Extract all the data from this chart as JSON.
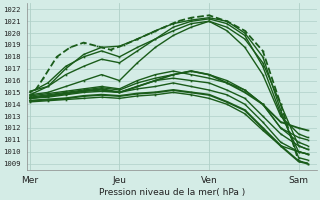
{
  "bg_color": "#d4ece6",
  "grid_color": "#b0d0c8",
  "line_color_dark": "#1a5c1a",
  "line_color_med": "#2a7a2a",
  "title": "Pression niveau de la mer( hPa )",
  "ylabel_vals": [
    1009,
    1010,
    1011,
    1012,
    1013,
    1014,
    1015,
    1016,
    1017,
    1018,
    1019,
    1020,
    1021,
    1022
  ],
  "ylim": [
    1008.5,
    1022.5
  ],
  "xlim": [
    -0.03,
    3.2
  ],
  "x_ticks": [
    0,
    1,
    2,
    3
  ],
  "x_labels": [
    "Mer",
    "Jeu",
    "Ven",
    "Sam"
  ],
  "ensemble_lines": [
    {
      "points": [
        [
          0,
          1014.5
        ],
        [
          0.15,
          1016.2
        ],
        [
          0.3,
          1018.0
        ],
        [
          0.45,
          1018.8
        ],
        [
          0.6,
          1019.2
        ],
        [
          0.75,
          1018.9
        ],
        [
          0.9,
          1018.6
        ],
        [
          1.05,
          1019.0
        ],
        [
          1.2,
          1019.5
        ],
        [
          1.35,
          1020.0
        ],
        [
          1.5,
          1020.5
        ],
        [
          1.65,
          1021.0
        ],
        [
          1.8,
          1021.3
        ],
        [
          2.0,
          1021.5
        ],
        [
          2.2,
          1021.0
        ],
        [
          2.4,
          1020.2
        ],
        [
          2.6,
          1018.5
        ],
        [
          2.8,
          1014.0
        ],
        [
          3.0,
          1009.2
        ],
        [
          3.1,
          1009.0
        ]
      ],
      "lw": 1.3,
      "dashed": true,
      "color": "#1a5c1a"
    },
    {
      "points": [
        [
          0,
          1014.8
        ],
        [
          0.2,
          1015.5
        ],
        [
          0.4,
          1017.0
        ],
        [
          0.6,
          1018.2
        ],
        [
          0.8,
          1018.8
        ],
        [
          1.0,
          1018.9
        ],
        [
          1.2,
          1019.5
        ],
        [
          1.4,
          1020.2
        ],
        [
          1.6,
          1020.8
        ],
        [
          1.8,
          1021.1
        ],
        [
          2.0,
          1021.3
        ],
        [
          2.2,
          1021.0
        ],
        [
          2.4,
          1020.0
        ],
        [
          2.6,
          1018.0
        ],
        [
          2.8,
          1013.5
        ],
        [
          3.0,
          1009.5
        ],
        [
          3.1,
          1009.3
        ]
      ],
      "lw": 1.0,
      "dashed": false,
      "color": "#1a5c1a"
    },
    {
      "points": [
        [
          0,
          1015.0
        ],
        [
          0.2,
          1015.8
        ],
        [
          0.4,
          1017.2
        ],
        [
          0.6,
          1018.0
        ],
        [
          0.8,
          1018.5
        ],
        [
          1.0,
          1018.0
        ],
        [
          1.2,
          1018.8
        ],
        [
          1.4,
          1019.5
        ],
        [
          1.6,
          1020.2
        ],
        [
          1.8,
          1020.8
        ],
        [
          2.0,
          1021.0
        ],
        [
          2.2,
          1020.5
        ],
        [
          2.4,
          1019.5
        ],
        [
          2.6,
          1017.5
        ],
        [
          2.8,
          1014.0
        ],
        [
          3.0,
          1010.5
        ],
        [
          3.1,
          1010.2
        ]
      ],
      "lw": 1.0,
      "dashed": false,
      "color": "#1a5c1a"
    },
    {
      "points": [
        [
          0,
          1015.1
        ],
        [
          0.2,
          1015.5
        ],
        [
          0.4,
          1016.5
        ],
        [
          0.6,
          1017.2
        ],
        [
          0.8,
          1017.8
        ],
        [
          1.0,
          1017.5
        ],
        [
          1.2,
          1018.5
        ],
        [
          1.4,
          1019.5
        ],
        [
          1.6,
          1020.5
        ],
        [
          1.8,
          1021.0
        ],
        [
          2.0,
          1021.2
        ],
        [
          2.2,
          1020.8
        ],
        [
          2.4,
          1019.8
        ],
        [
          2.6,
          1017.2
        ],
        [
          2.8,
          1013.2
        ],
        [
          3.0,
          1010.0
        ],
        [
          3.1,
          1009.8
        ]
      ],
      "lw": 1.0,
      "dashed": false,
      "color": "#1a5c1a"
    },
    {
      "points": [
        [
          0,
          1014.8
        ],
        [
          0.2,
          1015.0
        ],
        [
          0.4,
          1015.5
        ],
        [
          0.6,
          1016.0
        ],
        [
          0.8,
          1016.5
        ],
        [
          1.0,
          1016.0
        ],
        [
          1.2,
          1017.5
        ],
        [
          1.4,
          1018.8
        ],
        [
          1.6,
          1019.8
        ],
        [
          1.8,
          1020.5
        ],
        [
          2.0,
          1021.0
        ],
        [
          2.2,
          1020.2
        ],
        [
          2.4,
          1018.8
        ],
        [
          2.6,
          1016.5
        ],
        [
          2.8,
          1013.0
        ],
        [
          3.0,
          1011.5
        ],
        [
          3.1,
          1011.2
        ]
      ],
      "lw": 1.0,
      "dashed": false,
      "color": "#1a5c1a"
    },
    {
      "points": [
        [
          0,
          1014.7
        ],
        [
          0.2,
          1014.9
        ],
        [
          0.4,
          1015.1
        ],
        [
          0.6,
          1015.3
        ],
        [
          0.8,
          1015.5
        ],
        [
          1.0,
          1015.3
        ],
        [
          1.2,
          1016.0
        ],
        [
          1.4,
          1016.5
        ],
        [
          1.6,
          1016.8
        ],
        [
          1.8,
          1016.5
        ],
        [
          2.0,
          1016.2
        ],
        [
          2.2,
          1015.8
        ],
        [
          2.4,
          1015.2
        ],
        [
          2.6,
          1014.0
        ],
        [
          2.8,
          1012.0
        ],
        [
          3.0,
          1010.8
        ],
        [
          3.1,
          1010.5
        ]
      ],
      "lw": 1.0,
      "dashed": false,
      "color": "#1a5c1a"
    },
    {
      "points": [
        [
          0,
          1014.6
        ],
        [
          0.2,
          1014.8
        ],
        [
          0.4,
          1015.0
        ],
        [
          0.6,
          1015.2
        ],
        [
          0.8,
          1015.4
        ],
        [
          1.0,
          1015.2
        ],
        [
          1.2,
          1015.8
        ],
        [
          1.4,
          1016.2
        ],
        [
          1.6,
          1016.5
        ],
        [
          1.8,
          1016.8
        ],
        [
          2.0,
          1016.5
        ],
        [
          2.2,
          1016.0
        ],
        [
          2.4,
          1015.2
        ],
        [
          2.6,
          1014.0
        ],
        [
          2.8,
          1012.0
        ],
        [
          3.0,
          1011.2
        ],
        [
          3.1,
          1011.0
        ]
      ],
      "lw": 1.0,
      "dashed": false,
      "color": "#1a5c1a"
    },
    {
      "points": [
        [
          0,
          1014.5
        ],
        [
          0.2,
          1014.7
        ],
        [
          0.4,
          1014.9
        ],
        [
          0.6,
          1015.1
        ],
        [
          0.8,
          1015.3
        ],
        [
          1.0,
          1015.0
        ],
        [
          1.2,
          1015.5
        ],
        [
          1.4,
          1016.0
        ],
        [
          1.6,
          1016.5
        ],
        [
          1.8,
          1016.8
        ],
        [
          2.0,
          1016.5
        ],
        [
          2.2,
          1015.8
        ],
        [
          2.4,
          1015.0
        ],
        [
          2.6,
          1014.0
        ],
        [
          2.8,
          1012.5
        ],
        [
          3.0,
          1012.0
        ],
        [
          3.1,
          1011.8
        ]
      ],
      "lw": 1.3,
      "dashed": false,
      "color": "#1a5c1a"
    },
    {
      "points": [
        [
          0,
          1014.5
        ],
        [
          0.2,
          1014.7
        ],
        [
          0.4,
          1014.9
        ],
        [
          0.6,
          1015.1
        ],
        [
          0.8,
          1015.2
        ],
        [
          1.0,
          1015.0
        ],
        [
          1.2,
          1015.5
        ],
        [
          1.4,
          1016.0
        ],
        [
          1.6,
          1016.2
        ],
        [
          1.8,
          1016.0
        ],
        [
          2.0,
          1015.8
        ],
        [
          2.2,
          1015.2
        ],
        [
          2.4,
          1014.5
        ],
        [
          2.6,
          1013.0
        ],
        [
          2.8,
          1011.5
        ],
        [
          3.0,
          1010.5
        ],
        [
          3.1,
          1010.2
        ]
      ],
      "lw": 1.0,
      "dashed": false,
      "color": "#1a5c1a"
    },
    {
      "points": [
        [
          0,
          1014.5
        ],
        [
          0.2,
          1014.6
        ],
        [
          0.4,
          1014.8
        ],
        [
          0.6,
          1015.0
        ],
        [
          0.8,
          1015.1
        ],
        [
          1.0,
          1015.0
        ],
        [
          1.2,
          1015.3
        ],
        [
          1.4,
          1015.5
        ],
        [
          1.6,
          1015.8
        ],
        [
          1.8,
          1015.5
        ],
        [
          2.0,
          1015.2
        ],
        [
          2.2,
          1014.8
        ],
        [
          2.4,
          1014.0
        ],
        [
          2.6,
          1012.5
        ],
        [
          2.8,
          1010.8
        ],
        [
          3.0,
          1010.0
        ],
        [
          3.1,
          1009.8
        ]
      ],
      "lw": 1.0,
      "dashed": false,
      "color": "#1a5c1a"
    },
    {
      "points": [
        [
          0,
          1014.3
        ],
        [
          0.2,
          1014.4
        ],
        [
          0.4,
          1014.5
        ],
        [
          0.6,
          1014.7
        ],
        [
          0.8,
          1014.8
        ],
        [
          1.0,
          1014.7
        ],
        [
          1.2,
          1014.9
        ],
        [
          1.4,
          1015.0
        ],
        [
          1.6,
          1015.2
        ],
        [
          1.8,
          1015.0
        ],
        [
          2.0,
          1014.8
        ],
        [
          2.2,
          1014.2
        ],
        [
          2.4,
          1013.5
        ],
        [
          2.6,
          1012.0
        ],
        [
          2.8,
          1010.5
        ],
        [
          3.0,
          1009.2
        ],
        [
          3.1,
          1009.0
        ]
      ],
      "lw": 1.5,
      "dashed": false,
      "color": "#1a5c1a"
    },
    {
      "points": [
        [
          0,
          1014.2
        ],
        [
          0.2,
          1014.3
        ],
        [
          0.4,
          1014.4
        ],
        [
          0.6,
          1014.5
        ],
        [
          0.8,
          1014.6
        ],
        [
          1.0,
          1014.5
        ],
        [
          1.2,
          1014.7
        ],
        [
          1.4,
          1014.8
        ],
        [
          1.6,
          1015.0
        ],
        [
          1.8,
          1014.8
        ],
        [
          2.0,
          1014.5
        ],
        [
          2.2,
          1014.0
        ],
        [
          2.4,
          1013.2
        ],
        [
          2.6,
          1011.8
        ],
        [
          2.8,
          1010.5
        ],
        [
          3.0,
          1010.0
        ],
        [
          3.1,
          1009.8
        ]
      ],
      "lw": 1.0,
      "dashed": false,
      "color": "#1a5c1a"
    }
  ]
}
